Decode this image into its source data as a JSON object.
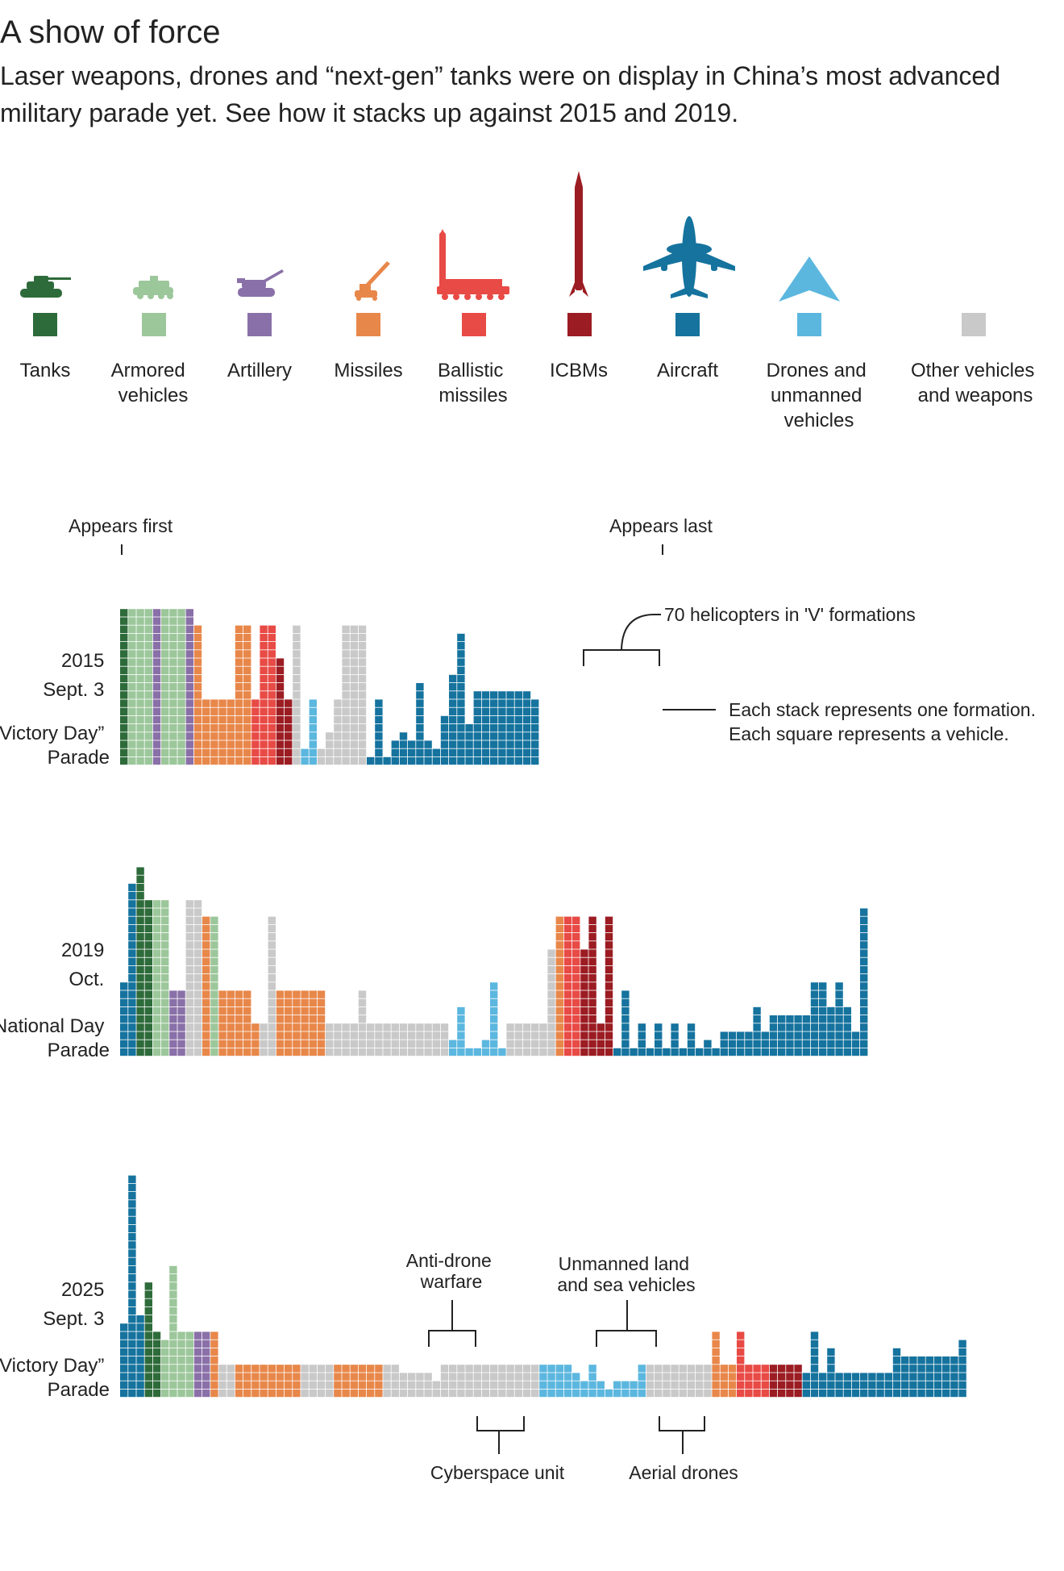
{
  "title": "A show of force",
  "subtitle_line1": "Laser weapons, drones and “next-gen” tanks were on display in China’s most advanced",
  "subtitle_line2": "military parade yet. See how it stacks up against 2015 and 2019.",
  "colors": {
    "tanks": "#2e6b3a",
    "armored": "#9cc79b",
    "artillery": "#8a70a8",
    "missiles": "#e8874a",
    "ballistic": "#e84a45",
    "icbm": "#9b1c22",
    "aircraft": "#15739e",
    "drones": "#5cb7df",
    "other": "#c9c9c9"
  },
  "legend": [
    {
      "key": "tanks",
      "lines": [
        "Tanks"
      ],
      "icon": "tank-icon"
    },
    {
      "key": "armored",
      "lines": [
        "Armored",
        "vehicles"
      ],
      "icon": "armored-vehicle-icon"
    },
    {
      "key": "artillery",
      "lines": [
        "Artillery"
      ],
      "icon": "artillery-icon"
    },
    {
      "key": "missiles",
      "lines": [
        "Missiles"
      ],
      "icon": "missile-launcher-icon"
    },
    {
      "key": "ballistic",
      "lines": [
        "Ballistic",
        "missiles"
      ],
      "icon": "ballistic-missile-truck-icon"
    },
    {
      "key": "icbm",
      "lines": [
        "ICBMs"
      ],
      "icon": "icbm-icon"
    },
    {
      "key": "aircraft",
      "lines": [
        "Aircraft"
      ],
      "icon": "aircraft-icon"
    },
    {
      "key": "drones",
      "lines": [
        "Drones and",
        "unmanned",
        "vehicles"
      ],
      "icon": "drone-icon"
    },
    {
      "key": "other",
      "lines": [
        "Other vehicles",
        "and weapons"
      ],
      "icon": "none"
    }
  ],
  "annotations": {
    "appears_first": "Appears first",
    "appears_last": "Appears last",
    "helicopters": "70 helicopters in 'V' formations",
    "each_stack": "Each stack represents one formation.",
    "each_square": "Each square represents a vehicle.",
    "anti_drone_1": "Anti-drone",
    "anti_drone_2": "warfare",
    "unmanned_1": "Unmanned land",
    "unmanned_2": "and sea vehicles",
    "cyberspace": "Cyberspace unit",
    "aerial": "Aerial drones"
  },
  "chart_data": {
    "type": "stacked-unit-columns",
    "x_axis_note": "order of appearance (left = first, right = last)",
    "unit": "1 square = 1 vehicle",
    "parades": [
      {
        "id": "2015",
        "label_lines": [
          "2015",
          "Sept. 3",
          "“Victory Day”",
          "Parade"
        ],
        "stacks": [
          [
            "tanks",
            19
          ],
          [
            "armored",
            19
          ],
          [
            "armored",
            19
          ],
          [
            "armored",
            19
          ],
          [
            "artillery",
            19
          ],
          [
            "armored",
            19
          ],
          [
            "armored",
            19
          ],
          [
            "armored",
            19
          ],
          [
            "artillery",
            19
          ],
          [
            "missiles",
            17
          ],
          [
            "missiles",
            8
          ],
          [
            "missiles",
            8
          ],
          [
            "missiles",
            8
          ],
          [
            "missiles",
            8
          ],
          [
            "missiles",
            17
          ],
          [
            "missiles",
            17
          ],
          [
            "ballistic",
            8
          ],
          [
            "ballistic",
            17
          ],
          [
            "ballistic",
            17
          ],
          [
            "icbm",
            13
          ],
          [
            "icbm",
            8
          ],
          [
            "other",
            17
          ],
          [
            "drones",
            2
          ],
          [
            "drones",
            8
          ],
          [
            "other",
            2
          ],
          [
            "other",
            4
          ],
          [
            "other",
            8
          ],
          [
            "other",
            17
          ],
          [
            "other",
            17
          ],
          [
            "other",
            17
          ],
          [
            "aircraft",
            1
          ],
          [
            "aircraft",
            8
          ],
          [
            "aircraft",
            1
          ],
          [
            "aircraft",
            3
          ],
          [
            "aircraft",
            4
          ],
          [
            "aircraft",
            3
          ],
          [
            "aircraft",
            10
          ],
          [
            "aircraft",
            3
          ],
          [
            "aircraft",
            2
          ],
          [
            "aircraft",
            6
          ],
          [
            "aircraft",
            11
          ],
          [
            "aircraft",
            16
          ],
          [
            "aircraft",
            5
          ],
          [
            "aircraft",
            9
          ],
          [
            "aircraft",
            9
          ],
          [
            "aircraft",
            9
          ],
          [
            "aircraft",
            9
          ],
          [
            "aircraft",
            9
          ],
          [
            "aircraft",
            9
          ],
          [
            "aircraft",
            9
          ],
          [
            "aircraft",
            8
          ]
        ]
      },
      {
        "id": "2019",
        "label_lines": [
          "2019",
          "Oct.",
          "National Day",
          "Parade"
        ],
        "stacks": [
          [
            "aircraft",
            9
          ],
          [
            "aircraft",
            21
          ],
          [
            "tanks",
            23
          ],
          [
            "tanks",
            19
          ],
          [
            "armored",
            19
          ],
          [
            "armored",
            19
          ],
          [
            "artillery",
            8
          ],
          [
            "artillery",
            8
          ],
          [
            "other",
            19
          ],
          [
            "other",
            19
          ],
          [
            "missiles",
            17
          ],
          [
            "armored",
            17
          ],
          [
            "missiles",
            8
          ],
          [
            "missiles",
            8
          ],
          [
            "missiles",
            8
          ],
          [
            "missiles",
            8
          ],
          [
            "missiles",
            4
          ],
          [
            "other",
            4
          ],
          [
            "other",
            17
          ],
          [
            "missiles",
            8
          ],
          [
            "missiles",
            8
          ],
          [
            "missiles",
            8
          ],
          [
            "missiles",
            8
          ],
          [
            "missiles",
            8
          ],
          [
            "missiles",
            8
          ],
          [
            "other",
            4
          ],
          [
            "other",
            4
          ],
          [
            "other",
            4
          ],
          [
            "other",
            4
          ],
          [
            "other",
            8
          ],
          [
            "other",
            4
          ],
          [
            "other",
            4
          ],
          [
            "other",
            4
          ],
          [
            "other",
            4
          ],
          [
            "other",
            4
          ],
          [
            "other",
            4
          ],
          [
            "other",
            4
          ],
          [
            "other",
            4
          ],
          [
            "other",
            4
          ],
          [
            "other",
            4
          ],
          [
            "drones",
            2
          ],
          [
            "drones",
            6
          ],
          [
            "drones",
            1
          ],
          [
            "drones",
            1
          ],
          [
            "drones",
            2
          ],
          [
            "drones",
            9
          ],
          [
            "drones",
            1
          ],
          [
            "other",
            4
          ],
          [
            "other",
            4
          ],
          [
            "other",
            4
          ],
          [
            "other",
            4
          ],
          [
            "other",
            4
          ],
          [
            "other",
            13
          ],
          [
            "missiles",
            17
          ],
          [
            "ballistic",
            17
          ],
          [
            "ballistic",
            17
          ],
          [
            "icbm",
            13
          ],
          [
            "icbm",
            17
          ],
          [
            "icbm",
            4
          ],
          [
            "icbm",
            17
          ],
          [
            "aircraft",
            1
          ],
          [
            "aircraft",
            8
          ],
          [
            "aircraft",
            1
          ],
          [
            "aircraft",
            4
          ],
          [
            "aircraft",
            1
          ],
          [
            "aircraft",
            4
          ],
          [
            "aircraft",
            1
          ],
          [
            "aircraft",
            4
          ],
          [
            "aircraft",
            1
          ],
          [
            "aircraft",
            4
          ],
          [
            "aircraft",
            1
          ],
          [
            "aircraft",
            2
          ],
          [
            "aircraft",
            1
          ],
          [
            "aircraft",
            3
          ],
          [
            "aircraft",
            3
          ],
          [
            "aircraft",
            3
          ],
          [
            "aircraft",
            3
          ],
          [
            "aircraft",
            6
          ],
          [
            "aircraft",
            3
          ],
          [
            "aircraft",
            5
          ],
          [
            "aircraft",
            5
          ],
          [
            "aircraft",
            5
          ],
          [
            "aircraft",
            5
          ],
          [
            "aircraft",
            5
          ],
          [
            "aircraft",
            9
          ],
          [
            "aircraft",
            9
          ],
          [
            "aircraft",
            6
          ],
          [
            "aircraft",
            9
          ],
          [
            "aircraft",
            6
          ],
          [
            "aircraft",
            3
          ],
          [
            "aircraft",
            18
          ]
        ]
      },
      {
        "id": "2025",
        "label_lines": [
          "2025",
          "Sept. 3",
          "“Victory Day”",
          "Parade"
        ],
        "stacks": [
          [
            "aircraft",
            9
          ],
          [
            "aircraft",
            27
          ],
          [
            "aircraft",
            10
          ],
          [
            "tanks",
            14
          ],
          [
            "tanks",
            8
          ],
          [
            "armored",
            7
          ],
          [
            "armored",
            16
          ],
          [
            "armored",
            8
          ],
          [
            "armored",
            8
          ],
          [
            "artillery",
            8
          ],
          [
            "artillery",
            8
          ],
          [
            "missiles",
            8
          ],
          [
            "other",
            4
          ],
          [
            "other",
            4
          ],
          [
            "missiles",
            4
          ],
          [
            "missiles",
            4
          ],
          [
            "missiles",
            4
          ],
          [
            "missiles",
            4
          ],
          [
            "missiles",
            4
          ],
          [
            "missiles",
            4
          ],
          [
            "missiles",
            4
          ],
          [
            "missiles",
            4
          ],
          [
            "other",
            4
          ],
          [
            "other",
            4
          ],
          [
            "other",
            4
          ],
          [
            "other",
            4
          ],
          [
            "missiles",
            4
          ],
          [
            "missiles",
            4
          ],
          [
            "missiles",
            4
          ],
          [
            "missiles",
            4
          ],
          [
            "missiles",
            4
          ],
          [
            "missiles",
            4
          ],
          [
            "other",
            4
          ],
          [
            "other",
            4
          ],
          [
            "other",
            3
          ],
          [
            "other",
            3
          ],
          [
            "other",
            3
          ],
          [
            "other",
            3
          ],
          [
            "other",
            2
          ],
          [
            "other",
            4
          ],
          [
            "other",
            4
          ],
          [
            "other",
            4
          ],
          [
            "other",
            4
          ],
          [
            "other",
            4
          ],
          [
            "other",
            4
          ],
          [
            "other",
            4
          ],
          [
            "other",
            4
          ],
          [
            "other",
            4
          ],
          [
            "other",
            4
          ],
          [
            "other",
            4
          ],
          [
            "other",
            4
          ],
          [
            "drones",
            4
          ],
          [
            "drones",
            4
          ],
          [
            "drones",
            4
          ],
          [
            "drones",
            4
          ],
          [
            "drones",
            3
          ],
          [
            "drones",
            2
          ],
          [
            "drones",
            4
          ],
          [
            "drones",
            2
          ],
          [
            "drones",
            1
          ],
          [
            "drones",
            2
          ],
          [
            "drones",
            2
          ],
          [
            "drones",
            2
          ],
          [
            "drones",
            4
          ],
          [
            "other",
            4
          ],
          [
            "other",
            4
          ],
          [
            "other",
            4
          ],
          [
            "other",
            4
          ],
          [
            "other",
            4
          ],
          [
            "other",
            4
          ],
          [
            "other",
            4
          ],
          [
            "other",
            4
          ],
          [
            "missiles",
            8
          ],
          [
            "missiles",
            4
          ],
          [
            "missiles",
            4
          ],
          [
            "ballistic",
            8
          ],
          [
            "ballistic",
            4
          ],
          [
            "ballistic",
            4
          ],
          [
            "ballistic",
            4
          ],
          [
            "icbm",
            4
          ],
          [
            "icbm",
            4
          ],
          [
            "icbm",
            4
          ],
          [
            "icbm",
            4
          ],
          [
            "aircraft",
            3
          ],
          [
            "aircraft",
            8
          ],
          [
            "aircraft",
            3
          ],
          [
            "aircraft",
            6
          ],
          [
            "aircraft",
            3
          ],
          [
            "aircraft",
            3
          ],
          [
            "aircraft",
            3
          ],
          [
            "aircraft",
            3
          ],
          [
            "aircraft",
            3
          ],
          [
            "aircraft",
            3
          ],
          [
            "aircraft",
            3
          ],
          [
            "aircraft",
            6
          ],
          [
            "aircraft",
            5
          ],
          [
            "aircraft",
            5
          ],
          [
            "aircraft",
            5
          ],
          [
            "aircraft",
            5
          ],
          [
            "aircraft",
            5
          ],
          [
            "aircraft",
            5
          ],
          [
            "aircraft",
            5
          ],
          [
            "aircraft",
            7
          ]
        ]
      }
    ]
  }
}
